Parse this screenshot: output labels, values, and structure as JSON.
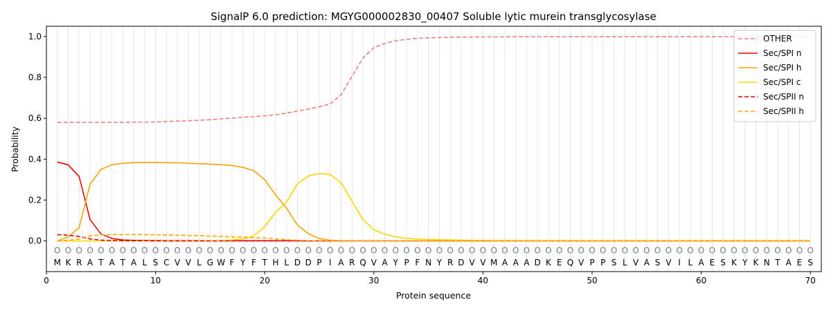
{
  "chart_data": {
    "type": "line",
    "title": "SignalP 6.0 prediction: MGYG000002830_00407 Soluble lytic murein transglycosylase",
    "xlabel": "Protein sequence",
    "ylabel": "Probability",
    "xlim": [
      0,
      71
    ],
    "ylim": [
      -0.15,
      1.05
    ],
    "x_ticks": [
      "0",
      "10",
      "20",
      "30",
      "40",
      "50",
      "60",
      "70"
    ],
    "y_ticks": [
      "0.0",
      "0.2",
      "0.4",
      "0.6",
      "0.8",
      "1.0"
    ],
    "grid": "vertical lines at each residue",
    "legend_position": "top-right",
    "sequence": [
      "M",
      "K",
      "R",
      "A",
      "T",
      "A",
      "T",
      "A",
      "L",
      "S",
      "C",
      "V",
      "V",
      "L",
      "G",
      "W",
      "F",
      "Y",
      "F",
      "T",
      "H",
      "L",
      "D",
      "D",
      "P",
      "I",
      "A",
      "R",
      "Q",
      "V",
      "A",
      "Y",
      "P",
      "F",
      "N",
      "Y",
      "R",
      "D",
      "V",
      "V",
      "M",
      "A",
      "A",
      "A",
      "D",
      "K",
      "E",
      "Q",
      "V",
      "P",
      "P",
      "S",
      "L",
      "V",
      "A",
      "S",
      "V",
      "I",
      "L",
      "A",
      "E",
      "S",
      "K",
      "Y",
      "K",
      "N",
      "T",
      "A",
      "E",
      "S"
    ],
    "marker_glyph": "O",
    "series": [
      {
        "name": "OTHER",
        "color": "#f08080",
        "dash": "dashed",
        "values": [
          0.58,
          0.58,
          0.58,
          0.58,
          0.58,
          0.58,
          0.58,
          0.581,
          0.581,
          0.582,
          0.584,
          0.586,
          0.588,
          0.59,
          0.593,
          0.597,
          0.601,
          0.605,
          0.608,
          0.612,
          0.617,
          0.625,
          0.635,
          0.645,
          0.656,
          0.67,
          0.715,
          0.805,
          0.895,
          0.945,
          0.966,
          0.979,
          0.986,
          0.991,
          0.993,
          0.995,
          0.996,
          0.997,
          0.997,
          0.998,
          0.998,
          0.998,
          0.999,
          0.999,
          0.999,
          0.999,
          0.999,
          0.999,
          0.999,
          0.999,
          0.999,
          0.999,
          0.999,
          0.999,
          0.999,
          0.999,
          0.999,
          0.999,
          0.999,
          0.999,
          0.999,
          0.999,
          0.999,
          0.999,
          0.999,
          0.999,
          0.999,
          0.999,
          0.999,
          0.999
        ]
      },
      {
        "name": "Sec/SPI n",
        "color": "#ee0000",
        "dash": "solid",
        "values": [
          0.386,
          0.372,
          0.315,
          0.105,
          0.034,
          0.012,
          0.005,
          0.003,
          0.002,
          0.002,
          0.001,
          0.001,
          0.001,
          0.001,
          0.001,
          0.001,
          0.001,
          0.001,
          0.001,
          0.001,
          0.001,
          0.001,
          0.001,
          0.0,
          0.0,
          0.0,
          0.0,
          0.0,
          0.0,
          0.0,
          0.0,
          0.0,
          0.0,
          0.0,
          0.0,
          0.0,
          0.0,
          0.0,
          0.0,
          0.0,
          0.0,
          0.0,
          0.0,
          0.0,
          0.0,
          0.0,
          0.0,
          0.0,
          0.0,
          0.0,
          0.0,
          0.0,
          0.0,
          0.0,
          0.0,
          0.0,
          0.0,
          0.0,
          0.0,
          0.0,
          0.0,
          0.0,
          0.0,
          0.0,
          0.0,
          0.0,
          0.0,
          0.0,
          0.0,
          0.0
        ]
      },
      {
        "name": "Sec/SPI h",
        "color": "#f5a500",
        "dash": "solid",
        "values": [
          0.0,
          0.02,
          0.065,
          0.278,
          0.35,
          0.372,
          0.38,
          0.383,
          0.384,
          0.384,
          0.383,
          0.382,
          0.38,
          0.378,
          0.376,
          0.373,
          0.369,
          0.36,
          0.344,
          0.3,
          0.225,
          0.16,
          0.078,
          0.035,
          0.012,
          0.003,
          0.001,
          0.0,
          0.0,
          0.0,
          0.0,
          0.0,
          0.0,
          0.0,
          0.0,
          0.0,
          0.0,
          0.0,
          0.0,
          0.0,
          0.0,
          0.0,
          0.0,
          0.0,
          0.0,
          0.0,
          0.0,
          0.0,
          0.0,
          0.0,
          0.0,
          0.0,
          0.0,
          0.0,
          0.0,
          0.0,
          0.0,
          0.0,
          0.0,
          0.0,
          0.0,
          0.0,
          0.0,
          0.0,
          0.0,
          0.0,
          0.0,
          0.0,
          0.0,
          0.0
        ]
      },
      {
        "name": "Sec/SPI c",
        "color": "#ffd700",
        "dash": "solid",
        "values": [
          0.0,
          0.0,
          0.0,
          0.0,
          0.0,
          0.0,
          0.0,
          0.0,
          0.0,
          0.0,
          0.0,
          0.0,
          0.0,
          0.0,
          0.001,
          0.002,
          0.005,
          0.01,
          0.025,
          0.07,
          0.14,
          0.19,
          0.28,
          0.318,
          0.33,
          0.325,
          0.285,
          0.195,
          0.105,
          0.055,
          0.033,
          0.02,
          0.013,
          0.009,
          0.007,
          0.006,
          0.005,
          0.004,
          0.003,
          0.003,
          0.002,
          0.002,
          0.002,
          0.001,
          0.001,
          0.001,
          0.001,
          0.001,
          0.001,
          0.001,
          0.001,
          0.001,
          0.001,
          0.001,
          0.001,
          0.001,
          0.001,
          0.001,
          0.001,
          0.001,
          0.001,
          0.001,
          0.001,
          0.001,
          0.001,
          0.001,
          0.001,
          0.001,
          0.001,
          0.001
        ]
      },
      {
        "name": "Sec/SPII n",
        "color": "#dd0000",
        "dash": "dashed",
        "values": [
          0.031,
          0.028,
          0.022,
          0.01,
          0.004,
          0.002,
          0.001,
          0.001,
          0.001,
          0.0,
          0.0,
          0.0,
          0.0,
          0.0,
          0.0,
          0.0,
          0.0,
          0.0,
          0.0,
          0.0,
          0.0,
          0.0,
          0.0,
          0.0,
          0.0,
          0.0,
          0.0,
          0.0,
          0.0,
          0.0,
          0.0,
          0.0,
          0.0,
          0.0,
          0.0,
          0.0,
          0.0,
          0.0,
          0.0,
          0.0,
          0.0,
          0.0,
          0.0,
          0.0,
          0.0,
          0.0,
          0.0,
          0.0,
          0.0,
          0.0,
          0.0,
          0.0,
          0.0,
          0.0,
          0.0,
          0.0,
          0.0,
          0.0,
          0.0,
          0.0,
          0.0,
          0.0,
          0.0,
          0.0,
          0.0,
          0.0,
          0.0,
          0.0,
          0.0,
          0.0
        ]
      },
      {
        "name": "Sec/SPII h",
        "color": "#ffa500",
        "dash": "dashed",
        "values": [
          0.0,
          0.003,
          0.01,
          0.025,
          0.03,
          0.031,
          0.031,
          0.031,
          0.031,
          0.03,
          0.029,
          0.028,
          0.027,
          0.026,
          0.024,
          0.022,
          0.02,
          0.018,
          0.016,
          0.014,
          0.01,
          0.006,
          0.003,
          0.001,
          0.0,
          0.0,
          0.0,
          0.0,
          0.0,
          0.0,
          0.0,
          0.0,
          0.0,
          0.0,
          0.0,
          0.0,
          0.0,
          0.0,
          0.0,
          0.0,
          0.0,
          0.0,
          0.0,
          0.0,
          0.0,
          0.0,
          0.0,
          0.0,
          0.0,
          0.0,
          0.0,
          0.0,
          0.0,
          0.0,
          0.0,
          0.0,
          0.0,
          0.0,
          0.0,
          0.0,
          0.0,
          0.0,
          0.0,
          0.0,
          0.0,
          0.0,
          0.0,
          0.0,
          0.0,
          0.0
        ]
      }
    ]
  }
}
